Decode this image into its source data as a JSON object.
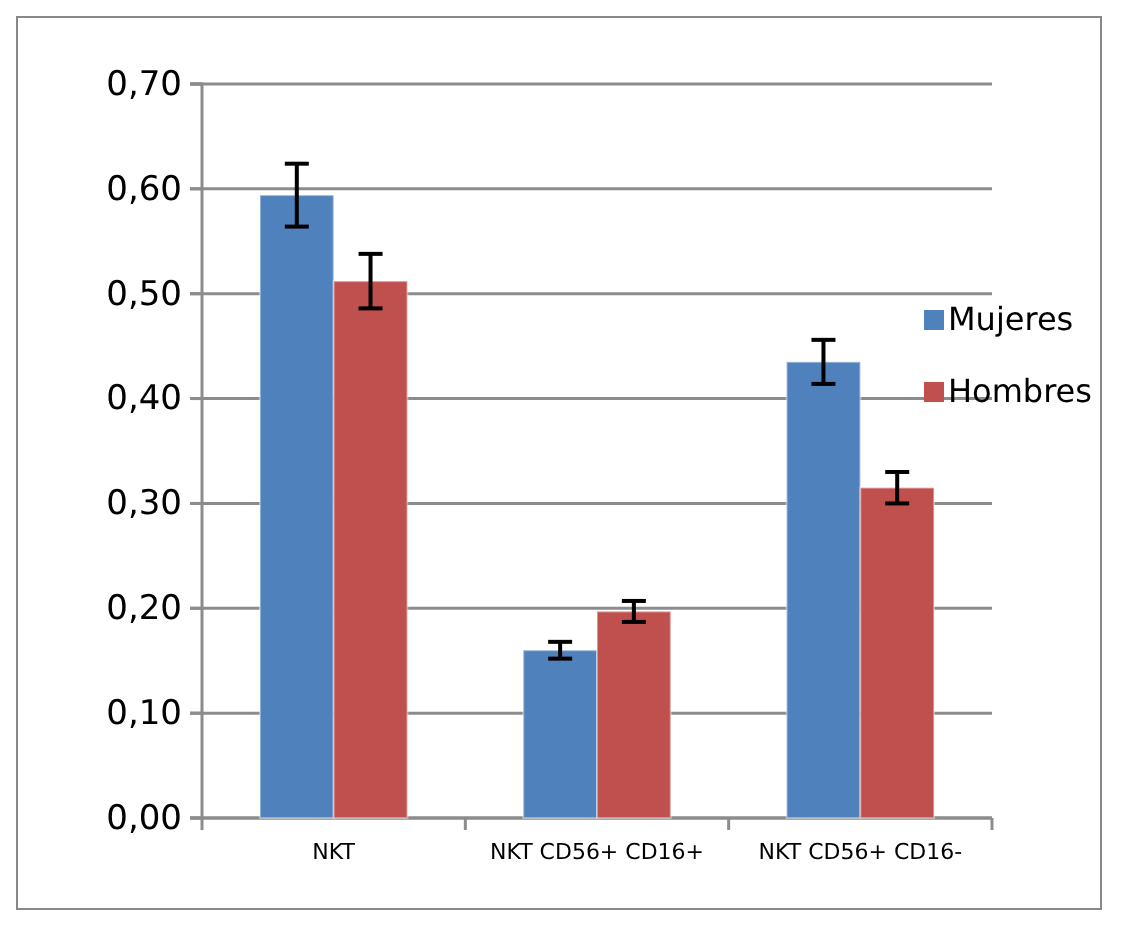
{
  "chart_data": {
    "type": "bar",
    "categories": [
      "NKT",
      "NKT CD56+ CD16+",
      "NKT CD56+ CD16-"
    ],
    "series": [
      {
        "name": "Mujeres",
        "color": "#4f81bd",
        "values": [
          0.594,
          0.16,
          0.435
        ],
        "errors": [
          0.03,
          0.008,
          0.021
        ]
      },
      {
        "name": "Hombres",
        "color": "#c0504d",
        "values": [
          0.512,
          0.197,
          0.315
        ],
        "errors": [
          0.026,
          0.01,
          0.015
        ]
      }
    ],
    "ylim": [
      0,
      0.7
    ],
    "yticks": [
      {
        "value": 0,
        "label": "0,00"
      },
      {
        "value": 0.1,
        "label": "0,10"
      },
      {
        "value": 0.2,
        "label": "0,20"
      },
      {
        "value": 0.3,
        "label": "0,30"
      },
      {
        "value": 0.4,
        "label": "0,40"
      },
      {
        "value": 0.5,
        "label": "0,50"
      },
      {
        "value": 0.6,
        "label": "0,60"
      },
      {
        "value": 0.7,
        "label": "0,70"
      }
    ],
    "grid": "y",
    "legend": "right"
  }
}
